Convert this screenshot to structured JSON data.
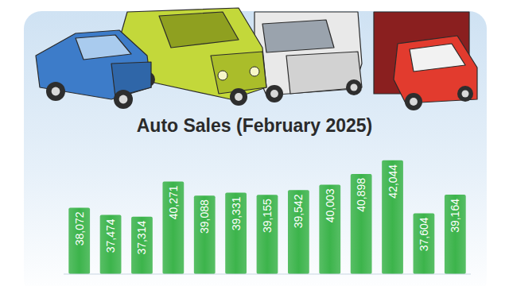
{
  "chart_data": {
    "type": "bar",
    "title": "Auto Sales (February 2025)",
    "categories": [
      null,
      null,
      null,
      null,
      null,
      null,
      null,
      null,
      null,
      null,
      null,
      null,
      null
    ],
    "values": [
      38072,
      37474,
      37314,
      40271,
      39088,
      39331,
      39155,
      39542,
      40003,
      40898,
      42044,
      37604,
      39164
    ],
    "value_labels": [
      "38,072",
      "37,474",
      "37,314",
      "40,271",
      "39,088",
      "39,331",
      "39,155",
      "39,542",
      "40,003",
      "40,898",
      "42,044",
      "37,604",
      "39,164"
    ],
    "color": "#3cb44b",
    "ylim": [
      32500,
      43500
    ],
    "data_labels": true,
    "tick_labels": false
  }
}
